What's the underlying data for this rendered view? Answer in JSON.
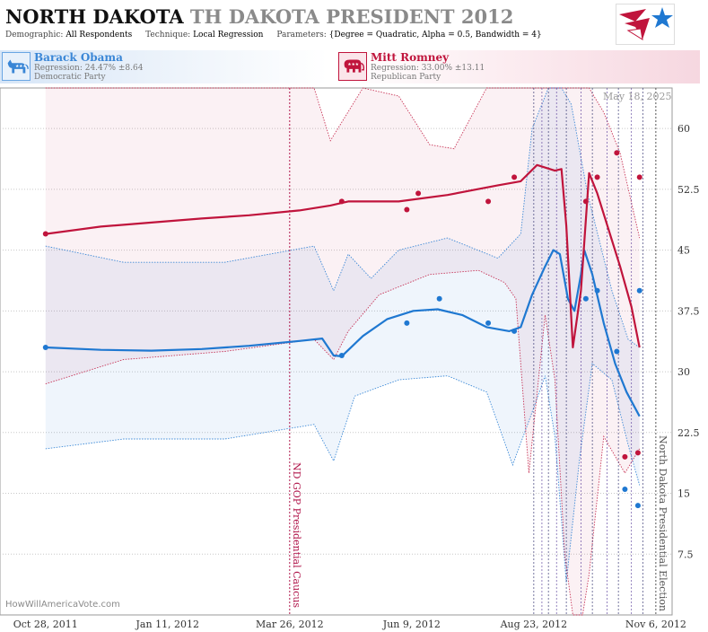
{
  "header": {
    "state": "NORTH DAKOTA",
    "race": "TH DAKOTA PRESIDENT 2012",
    "params": [
      {
        "key": "Demographic:",
        "value": "All Respondents"
      },
      {
        "key": "Technique:",
        "value": "Local Regression"
      },
      {
        "key": "Parameters:",
        "value": "{Degree = Quadratic, Alpha = 0.5, Bandwidth = 4}"
      }
    ]
  },
  "candidates": {
    "dem": {
      "name": "Barack Obama",
      "regression": "Regression: 24.47% ±8.64",
      "party": "Democratic Party",
      "icon": "donkey-icon"
    },
    "rep": {
      "name": "Mitt Romney",
      "regression": "Regression: 33.00% ±13.11",
      "party": "Republican Party",
      "icon": "elephant-icon"
    }
  },
  "credit": "HowWillAmericaVote.com",
  "datestamp": "May 18, 2025",
  "colors": {
    "dem": "#1f78d1",
    "rep": "#c0143c",
    "grid": "#c8c8c8"
  },
  "chart_data": {
    "type": "line",
    "x_type": "date",
    "xlim": [
      "2011-09-30",
      "2012-11-16"
    ],
    "ylim": [
      0,
      65
    ],
    "y_ticks": [
      "7.5",
      "15",
      "22.5",
      "30",
      "37.5",
      "45",
      "52.5",
      "60"
    ],
    "x_ticks": [
      {
        "date": "2011-10-28",
        "label": "Oct 28, 2011"
      },
      {
        "date": "2012-01-11",
        "label": "Jan 11, 2012"
      },
      {
        "date": "2012-03-26",
        "label": "Mar 26, 2012"
      },
      {
        "date": "2012-06-09",
        "label": "Jun 9, 2012"
      },
      {
        "date": "2012-08-23",
        "label": "Aug 23, 2012"
      },
      {
        "date": "2012-11-06",
        "label": "Nov 6, 2012"
      }
    ],
    "events": [
      {
        "date": "2012-03-26",
        "label": "ND GOP Presidential Caucus",
        "color": "#b0154a"
      },
      {
        "date": "2012-11-06",
        "label": "North Dakota Presidential Election",
        "color": "#555555"
      }
    ],
    "poll_markers": [
      "2012-08-23",
      "2012-08-28",
      "2012-09-01",
      "2012-09-06",
      "2012-09-12",
      "2012-09-21",
      "2012-09-28",
      "2012-10-07",
      "2012-10-14",
      "2012-10-22",
      "2012-10-29"
    ],
    "series": [
      {
        "name": "Barack Obama",
        "party": "dem",
        "points": [
          {
            "x": "2011-10-28",
            "y": 33.0
          },
          {
            "x": "2012-04-27",
            "y": 32.0
          },
          {
            "x": "2012-06-06",
            "y": 36.0
          },
          {
            "x": "2012-06-26",
            "y": 39.0
          },
          {
            "x": "2012-07-26",
            "y": 36.0
          },
          {
            "x": "2012-08-11",
            "y": 35.0
          },
          {
            "x": "2012-09-24",
            "y": 39.0
          },
          {
            "x": "2012-10-01",
            "y": 40.0
          },
          {
            "x": "2012-10-13",
            "y": 32.5
          },
          {
            "x": "2012-10-18",
            "y": 15.5
          },
          {
            "x": "2012-10-26",
            "y": 13.5
          },
          {
            "x": "2012-10-27",
            "y": 40.0
          }
        ],
        "trend": [
          [
            "2011-10-28",
            33.0
          ],
          [
            "2011-12-01",
            32.7
          ],
          [
            "2012-01-01",
            32.6
          ],
          [
            "2012-02-01",
            32.8
          ],
          [
            "2012-03-01",
            33.2
          ],
          [
            "2012-04-01",
            33.8
          ],
          [
            "2012-04-15",
            34.1
          ],
          [
            "2012-04-22",
            32.0
          ],
          [
            "2012-04-27",
            31.9
          ],
          [
            "2012-05-10",
            34.4
          ],
          [
            "2012-05-25",
            36.5
          ],
          [
            "2012-06-10",
            37.5
          ],
          [
            "2012-06-25",
            37.7
          ],
          [
            "2012-07-10",
            37.0
          ],
          [
            "2012-07-25",
            35.5
          ],
          [
            "2012-08-08",
            35.0
          ],
          [
            "2012-08-15",
            35.5
          ],
          [
            "2012-08-22",
            39.5
          ],
          [
            "2012-08-30",
            43.0
          ],
          [
            "2012-09-04",
            45.0
          ],
          [
            "2012-09-08",
            44.5
          ],
          [
            "2012-09-13",
            39.0
          ],
          [
            "2012-09-17",
            37.5
          ],
          [
            "2012-09-21",
            42.0
          ],
          [
            "2012-09-23",
            45.0
          ],
          [
            "2012-09-28",
            42.0
          ],
          [
            "2012-10-05",
            36.0
          ],
          [
            "2012-10-12",
            31.0
          ],
          [
            "2012-10-19",
            27.5
          ],
          [
            "2012-10-27",
            24.5
          ]
        ],
        "upper": [
          [
            "2011-10-28",
            45.5
          ],
          [
            "2011-12-15",
            43.5
          ],
          [
            "2012-02-15",
            43.5
          ],
          [
            "2012-04-10",
            45.5
          ],
          [
            "2012-04-22",
            40.0
          ],
          [
            "2012-05-01",
            44.5
          ],
          [
            "2012-05-15",
            41.5
          ],
          [
            "2012-06-01",
            45.0
          ],
          [
            "2012-07-01",
            46.5
          ],
          [
            "2012-08-01",
            44.0
          ],
          [
            "2012-08-15",
            47.0
          ],
          [
            "2012-08-22",
            60.0
          ],
          [
            "2012-09-01",
            65.0
          ],
          [
            "2012-09-09",
            65.0
          ],
          [
            "2012-09-15",
            63.0
          ],
          [
            "2012-09-25",
            52.0
          ],
          [
            "2012-10-10",
            40.0
          ],
          [
            "2012-10-20",
            34.0
          ],
          [
            "2012-10-27",
            33.0
          ]
        ],
        "lower": [
          [
            "2011-10-28",
            20.5
          ],
          [
            "2011-12-15",
            21.7
          ],
          [
            "2012-02-15",
            21.7
          ],
          [
            "2012-04-10",
            23.5
          ],
          [
            "2012-04-22",
            19.0
          ],
          [
            "2012-05-05",
            27.0
          ],
          [
            "2012-06-01",
            29.0
          ],
          [
            "2012-07-01",
            29.5
          ],
          [
            "2012-07-25",
            27.5
          ],
          [
            "2012-08-10",
            18.5
          ],
          [
            "2012-08-22",
            25.0
          ],
          [
            "2012-08-30",
            29.5
          ],
          [
            "2012-09-05",
            22.0
          ],
          [
            "2012-09-12",
            4.0
          ],
          [
            "2012-09-20",
            19.0
          ],
          [
            "2012-09-28",
            31.0
          ],
          [
            "2012-10-10",
            29.0
          ],
          [
            "2012-10-20",
            21.0
          ],
          [
            "2012-10-27",
            16.0
          ]
        ]
      },
      {
        "name": "Mitt Romney",
        "party": "rep",
        "points": [
          {
            "x": "2011-10-28",
            "y": 47.0
          },
          {
            "x": "2012-04-27",
            "y": 51.0
          },
          {
            "x": "2012-06-06",
            "y": 50.0
          },
          {
            "x": "2012-06-13",
            "y": 52.0
          },
          {
            "x": "2012-07-26",
            "y": 51.0
          },
          {
            "x": "2012-08-11",
            "y": 54.0
          },
          {
            "x": "2012-09-24",
            "y": 51.0
          },
          {
            "x": "2012-10-01",
            "y": 54.0
          },
          {
            "x": "2012-10-13",
            "y": 57.0
          },
          {
            "x": "2012-10-18",
            "y": 19.5
          },
          {
            "x": "2012-10-26",
            "y": 20.0
          },
          {
            "x": "2012-10-27",
            "y": 54.0
          }
        ],
        "trend": [
          [
            "2011-10-28",
            47.0
          ],
          [
            "2011-12-01",
            47.9
          ],
          [
            "2012-01-01",
            48.4
          ],
          [
            "2012-02-01",
            48.9
          ],
          [
            "2012-03-01",
            49.3
          ],
          [
            "2012-04-01",
            49.9
          ],
          [
            "2012-04-20",
            50.5
          ],
          [
            "2012-05-01",
            51.0
          ],
          [
            "2012-06-01",
            51.0
          ],
          [
            "2012-07-01",
            51.8
          ],
          [
            "2012-08-01",
            53.0
          ],
          [
            "2012-08-15",
            53.5
          ],
          [
            "2012-08-25",
            55.5
          ],
          [
            "2012-09-05",
            54.8
          ],
          [
            "2012-09-09",
            55.0
          ],
          [
            "2012-09-12",
            48.0
          ],
          [
            "2012-09-16",
            33.0
          ],
          [
            "2012-09-21",
            40.0
          ],
          [
            "2012-09-26",
            54.5
          ],
          [
            "2012-10-01",
            52.0
          ],
          [
            "2012-10-08",
            47.5
          ],
          [
            "2012-10-15",
            43.0
          ],
          [
            "2012-10-22",
            38.0
          ],
          [
            "2012-10-27",
            33.0
          ]
        ],
        "upper": [
          [
            "2011-10-28",
            65.0
          ],
          [
            "2012-03-01",
            65.0
          ],
          [
            "2012-04-10",
            65.0
          ],
          [
            "2012-04-20",
            58.5
          ],
          [
            "2012-05-10",
            65.0
          ],
          [
            "2012-06-01",
            64.0
          ],
          [
            "2012-06-20",
            58.0
          ],
          [
            "2012-07-05",
            57.5
          ],
          [
            "2012-07-25",
            65.0
          ],
          [
            "2012-09-26",
            65.0
          ],
          [
            "2012-10-05",
            62.0
          ],
          [
            "2012-10-15",
            57.0
          ],
          [
            "2012-10-27",
            46.5
          ]
        ],
        "lower": [
          [
            "2011-10-28",
            28.5
          ],
          [
            "2011-12-15",
            31.5
          ],
          [
            "2012-02-15",
            32.5
          ],
          [
            "2012-04-10",
            34.0
          ],
          [
            "2012-04-22",
            31.5
          ],
          [
            "2012-05-01",
            35.0
          ],
          [
            "2012-05-20",
            39.5
          ],
          [
            "2012-06-20",
            42.0
          ],
          [
            "2012-07-20",
            42.5
          ],
          [
            "2012-08-05",
            41.0
          ],
          [
            "2012-08-12",
            39.0
          ],
          [
            "2012-08-20",
            17.5
          ],
          [
            "2012-08-30",
            37.0
          ],
          [
            "2012-09-05",
            29.0
          ],
          [
            "2012-09-11",
            7.5
          ],
          [
            "2012-09-16",
            0.0
          ],
          [
            "2012-09-22",
            0.0
          ],
          [
            "2012-09-26",
            5.0
          ],
          [
            "2012-10-05",
            22.0
          ],
          [
            "2012-10-18",
            17.5
          ],
          [
            "2012-10-27",
            20.5
          ]
        ]
      }
    ]
  }
}
